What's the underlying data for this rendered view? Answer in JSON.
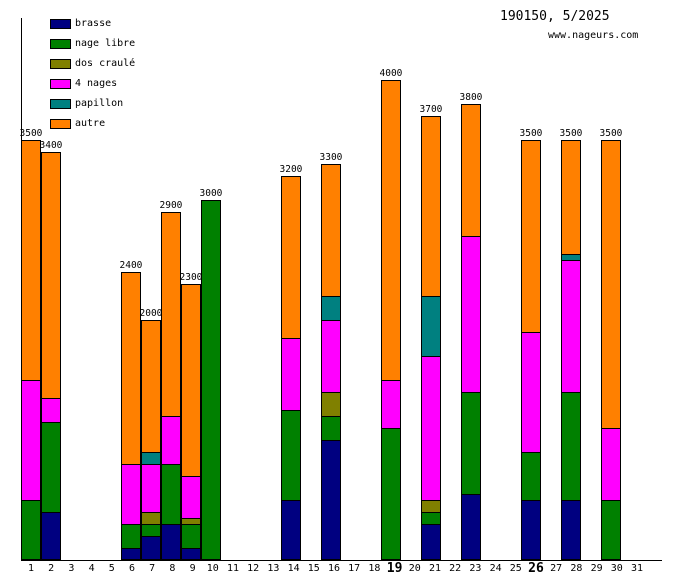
{
  "header": {
    "title": "190150, 5/2025",
    "site": "www.nageurs.com"
  },
  "legend": [
    {
      "label": "brasse",
      "color": "#000080"
    },
    {
      "label": "nage libre",
      "color": "#008000"
    },
    {
      "label": "dos craulé",
      "color": "#808000"
    },
    {
      "label": "4 nages",
      "color": "#FF00FF"
    },
    {
      "label": "papillon",
      "color": "#008080"
    },
    {
      "label": "autre",
      "color": "#FF8000"
    }
  ],
  "chart_data": {
    "type": "bar",
    "stacked": true,
    "title": "190150, 5/2025",
    "watermark": "www.nageurs.com",
    "x_days": [
      1,
      2,
      3,
      4,
      5,
      6,
      7,
      8,
      9,
      10,
      11,
      12,
      13,
      14,
      15,
      16,
      17,
      18,
      19,
      20,
      21,
      22,
      23,
      24,
      25,
      26,
      27,
      28,
      29,
      30,
      31
    ],
    "bold_days": [
      19,
      26
    ],
    "y_axis": {
      "ticks_visible": false,
      "ylim": [
        0,
        4500
      ]
    },
    "legend_position": "top-left",
    "stack_order_bottom_to_top": [
      "brasse",
      "nage libre",
      "dos craulé",
      "4 nages",
      "papillon",
      "autre"
    ],
    "bars": [
      {
        "day": 1,
        "total": 3500,
        "segments": [
          {
            "name": "nage libre",
            "value": 500
          },
          {
            "name": "4 nages",
            "value": 1000
          },
          {
            "name": "autre",
            "value": 2000
          }
        ]
      },
      {
        "day": 2,
        "total": 3400,
        "segments": [
          {
            "name": "brasse",
            "value": 400
          },
          {
            "name": "nage libre",
            "value": 750
          },
          {
            "name": "4 nages",
            "value": 200
          },
          {
            "name": "autre",
            "value": 2050
          }
        ]
      },
      {
        "day": 6,
        "total": 2400,
        "segments": [
          {
            "name": "brasse",
            "value": 100
          },
          {
            "name": "nage libre",
            "value": 200
          },
          {
            "name": "4 nages",
            "value": 500
          },
          {
            "name": "autre",
            "value": 1600
          }
        ]
      },
      {
        "day": 7,
        "total": 2000,
        "segments": [
          {
            "name": "brasse",
            "value": 200
          },
          {
            "name": "nage libre",
            "value": 100
          },
          {
            "name": "dos craulé",
            "value": 100
          },
          {
            "name": "4 nages",
            "value": 400
          },
          {
            "name": "papillon",
            "value": 100
          },
          {
            "name": "autre",
            "value": 1100
          }
        ]
      },
      {
        "day": 8,
        "total": 2900,
        "segments": [
          {
            "name": "brasse",
            "value": 300
          },
          {
            "name": "nage libre",
            "value": 500
          },
          {
            "name": "4 nages",
            "value": 400
          },
          {
            "name": "autre",
            "value": 1700
          }
        ]
      },
      {
        "day": 9,
        "total": 2300,
        "segments": [
          {
            "name": "brasse",
            "value": 100
          },
          {
            "name": "nage libre",
            "value": 200
          },
          {
            "name": "dos craulé",
            "value": 50
          },
          {
            "name": "4 nages",
            "value": 350
          },
          {
            "name": "autre",
            "value": 1600
          }
        ]
      },
      {
        "day": 10,
        "total": 3000,
        "segments": [
          {
            "name": "nage libre",
            "value": 3000
          }
        ]
      },
      {
        "day": 14,
        "total": 3200,
        "segments": [
          {
            "name": "brasse",
            "value": 500
          },
          {
            "name": "nage libre",
            "value": 750
          },
          {
            "name": "4 nages",
            "value": 600
          },
          {
            "name": "autre",
            "value": 1350
          }
        ]
      },
      {
        "day": 16,
        "total": 3300,
        "segments": [
          {
            "name": "brasse",
            "value": 1000
          },
          {
            "name": "nage libre",
            "value": 200
          },
          {
            "name": "dos craulé",
            "value": 200
          },
          {
            "name": "4 nages",
            "value": 600
          },
          {
            "name": "papillon",
            "value": 200
          },
          {
            "name": "autre",
            "value": 1100
          }
        ]
      },
      {
        "day": 19,
        "total": 4000,
        "segments": [
          {
            "name": "nage libre",
            "value": 1100
          },
          {
            "name": "4 nages",
            "value": 400
          },
          {
            "name": "autre",
            "value": 2500
          }
        ]
      },
      {
        "day": 21,
        "total": 3700,
        "segments": [
          {
            "name": "brasse",
            "value": 300
          },
          {
            "name": "nage libre",
            "value": 100
          },
          {
            "name": "dos craulé",
            "value": 100
          },
          {
            "name": "4 nages",
            "value": 1200
          },
          {
            "name": "papillon",
            "value": 500
          },
          {
            "name": "autre",
            "value": 1500
          }
        ]
      },
      {
        "day": 23,
        "total": 3800,
        "segments": [
          {
            "name": "brasse",
            "value": 550
          },
          {
            "name": "nage libre",
            "value": 850
          },
          {
            "name": "4 nages",
            "value": 1300
          },
          {
            "name": "autre",
            "value": 1100
          }
        ]
      },
      {
        "day": 26,
        "total": 3500,
        "segments": [
          {
            "name": "brasse",
            "value": 500
          },
          {
            "name": "nage libre",
            "value": 400
          },
          {
            "name": "4 nages",
            "value": 1000
          },
          {
            "name": "autre",
            "value": 1600
          }
        ]
      },
      {
        "day": 28,
        "total": 3500,
        "segments": [
          {
            "name": "brasse",
            "value": 500
          },
          {
            "name": "nage libre",
            "value": 900
          },
          {
            "name": "4 nages",
            "value": 1100
          },
          {
            "name": "papillon",
            "value": 50
          },
          {
            "name": "autre",
            "value": 950
          }
        ]
      },
      {
        "day": 30,
        "total": 3500,
        "segments": [
          {
            "name": "nage libre",
            "value": 500
          },
          {
            "name": "4 nages",
            "value": 600
          },
          {
            "name": "autre",
            "value": 2400
          }
        ]
      }
    ]
  }
}
